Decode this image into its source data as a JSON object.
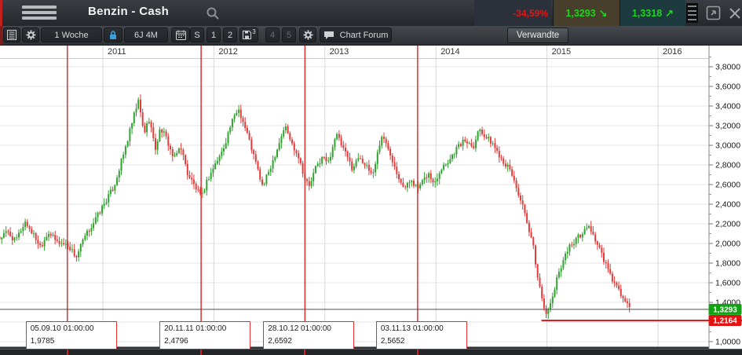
{
  "header": {
    "title": "Benzin - Cash",
    "change_percent": "-34,59%",
    "bid": {
      "value": "1,3293",
      "direction": "down"
    },
    "ask": {
      "value": "1,3318",
      "direction": "up"
    },
    "change_color": "#e01717",
    "value_color": "#1bd51b"
  },
  "toolbar": {
    "timeframe_label": "1 Woche",
    "range_label": "6J 4M",
    "segments": {
      "s": "S",
      "p1": "1",
      "p2": "2",
      "p3": "3",
      "p4": "4",
      "p5": "5"
    },
    "chart_forum_label": "Chart Forum",
    "related_tab_label": "Verwandte"
  },
  "chart_data": {
    "type": "candlestick",
    "title": "Benzin - Cash, weekly candles",
    "interval": "1 Woche",
    "x_year_labels": [
      "2011",
      "2012",
      "2013",
      "2014",
      "2015",
      "2016"
    ],
    "x_years": [
      2011,
      2012,
      2013,
      2014,
      2015,
      2016
    ],
    "y_tick_labels": [
      "3,8000",
      "3,6000",
      "3,4000",
      "3,2000",
      "3,0000",
      "2,8000",
      "2,6000",
      "2,4000",
      "2,2000",
      "2,0000",
      "1,8000",
      "1,6000",
      "1,4000",
      "1,2000",
      "1,0000"
    ],
    "y_tick_values": [
      3.8,
      3.6,
      3.4,
      3.2,
      3.0,
      2.8,
      2.6,
      2.4,
      2.2,
      2.0,
      1.8,
      1.6,
      1.4,
      1.2,
      1.0
    ],
    "y_range": [
      0.95,
      3.95
    ],
    "t_start": 2010.07,
    "t_end": 2015.76,
    "price_path": [
      [
        2010.07,
        2.05
      ],
      [
        2010.14,
        2.12
      ],
      [
        2010.21,
        2.02
      ],
      [
        2010.3,
        2.22
      ],
      [
        2010.37,
        2.1
      ],
      [
        2010.44,
        1.97
      ],
      [
        2010.51,
        2.12
      ],
      [
        2010.58,
        2.02
      ],
      [
        2010.69,
        1.98
      ],
      [
        2010.76,
        1.86
      ],
      [
        2010.83,
        2.05
      ],
      [
        2010.91,
        2.2
      ],
      [
        2011.0,
        2.38
      ],
      [
        2011.1,
        2.58
      ],
      [
        2011.21,
        3.0
      ],
      [
        2011.28,
        3.3
      ],
      [
        2011.32,
        3.45
      ],
      [
        2011.37,
        3.12
      ],
      [
        2011.42,
        3.28
      ],
      [
        2011.47,
        2.95
      ],
      [
        2011.52,
        3.18
      ],
      [
        2011.58,
        3.05
      ],
      [
        2011.64,
        2.85
      ],
      [
        2011.7,
        3.0
      ],
      [
        2011.76,
        2.72
      ],
      [
        2011.82,
        2.6
      ],
      [
        2011.89,
        2.46
      ],
      [
        2011.93,
        2.62
      ],
      [
        2012.0,
        2.78
      ],
      [
        2012.08,
        2.95
      ],
      [
        2012.15,
        3.2
      ],
      [
        2012.22,
        3.38
      ],
      [
        2012.3,
        3.12
      ],
      [
        2012.37,
        2.85
      ],
      [
        2012.44,
        2.57
      ],
      [
        2012.51,
        2.78
      ],
      [
        2012.58,
        3.0
      ],
      [
        2012.64,
        3.2
      ],
      [
        2012.7,
        3.02
      ],
      [
        2012.76,
        2.9
      ],
      [
        2012.82,
        2.66
      ],
      [
        2012.86,
        2.58
      ],
      [
        2012.92,
        2.78
      ],
      [
        2012.98,
        2.88
      ],
      [
        2013.03,
        2.82
      ],
      [
        2013.1,
        3.12
      ],
      [
        2013.17,
        2.95
      ],
      [
        2013.25,
        2.76
      ],
      [
        2013.31,
        2.9
      ],
      [
        2013.37,
        2.78
      ],
      [
        2013.43,
        2.7
      ],
      [
        2013.51,
        3.1
      ],
      [
        2013.58,
        2.95
      ],
      [
        2013.65,
        2.72
      ],
      [
        2013.72,
        2.56
      ],
      [
        2013.78,
        2.66
      ],
      [
        2013.83,
        2.55
      ],
      [
        2013.88,
        2.62
      ],
      [
        2013.93,
        2.72
      ],
      [
        2013.98,
        2.6
      ],
      [
        2014.05,
        2.78
      ],
      [
        2014.12,
        2.85
      ],
      [
        2014.19,
        2.98
      ],
      [
        2014.26,
        3.05
      ],
      [
        2014.34,
        3.0
      ],
      [
        2014.39,
        3.18
      ],
      [
        2014.45,
        3.08
      ],
      [
        2014.51,
        3.02
      ],
      [
        2014.56,
        2.92
      ],
      [
        2014.62,
        2.82
      ],
      [
        2014.68,
        2.72
      ],
      [
        2014.73,
        2.55
      ],
      [
        2014.78,
        2.38
      ],
      [
        2014.83,
        2.15
      ],
      [
        2014.88,
        1.95
      ],
      [
        2014.92,
        1.62
      ],
      [
        2014.97,
        1.38
      ],
      [
        2015.0,
        1.27
      ],
      [
        2015.02,
        1.33
      ],
      [
        2015.06,
        1.5
      ],
      [
        2015.11,
        1.72
      ],
      [
        2015.16,
        1.88
      ],
      [
        2015.21,
        1.98
      ],
      [
        2015.27,
        2.05
      ],
      [
        2015.33,
        2.12
      ],
      [
        2015.38,
        2.18
      ],
      [
        2015.43,
        2.05
      ],
      [
        2015.48,
        1.92
      ],
      [
        2015.53,
        1.78
      ],
      [
        2015.58,
        1.65
      ],
      [
        2015.63,
        1.55
      ],
      [
        2015.68,
        1.45
      ],
      [
        2015.72,
        1.38
      ],
      [
        2015.76,
        1.33
      ]
    ],
    "current_price": {
      "value": 1.3293,
      "label": "1,3293"
    },
    "level_line": {
      "value": 1.2164,
      "label": "1,2164",
      "start_t": 2014.95
    },
    "events": [
      {
        "t": 2010.68,
        "time": "05.09.10 01:00:00",
        "value": "1,9785"
      },
      {
        "t": 2011.885,
        "time": "20.11.11 01:00:00",
        "value": "2,4796"
      },
      {
        "t": 2012.82,
        "time": "28.10.12 01:00:00",
        "value": "2,6592"
      },
      {
        "t": 2013.835,
        "time": "03.11.13 01:00:00",
        "value": "2,5652"
      }
    ],
    "legend_position": "none",
    "grid": true,
    "colors": {
      "up": "#2fa22f",
      "down": "#e23b3b",
      "event_line": "#e03030",
      "level_line": "#de1f1f",
      "current_line": "#4d4d4d",
      "grid": "#e6e6e6",
      "year_grid": "#d8d8d8",
      "axis_text": "#1a1a1a",
      "badge_green": "#12a312",
      "badge_red": "#e31212"
    }
  }
}
